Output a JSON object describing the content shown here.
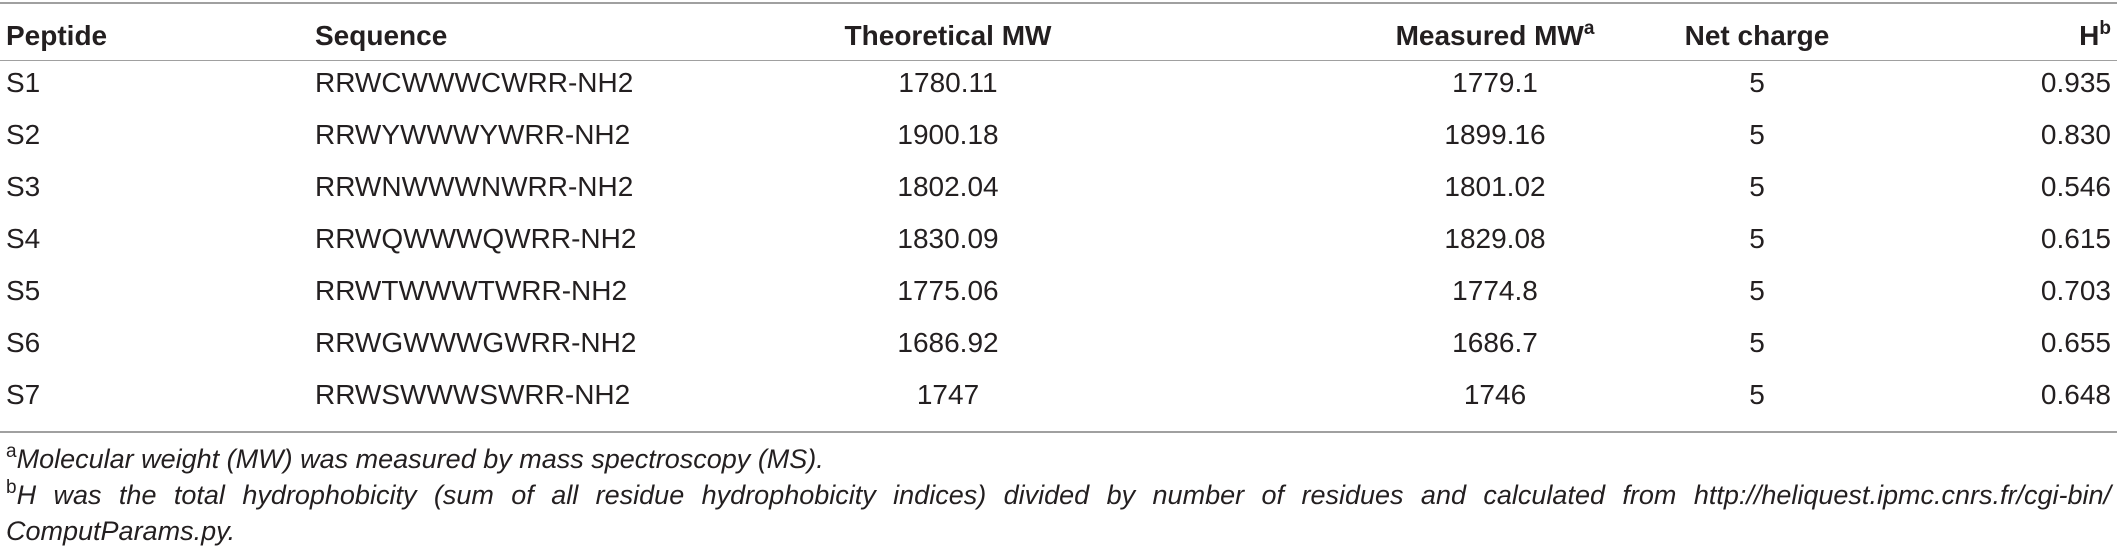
{
  "table": {
    "headers": {
      "peptide": "Peptide",
      "sequence": "Sequence",
      "theoretical_mw": "Theoretical MW",
      "measured_mw": "Measured MW",
      "measured_mw_sup": "a",
      "net_charge": "Net charge",
      "h": "H",
      "h_sup": "b"
    },
    "rows": [
      {
        "peptide": "S1",
        "sequence": "RRWCWWWCWRR-NH2",
        "theoretical_mw": "1780.11",
        "measured_mw": "1779.1",
        "net_charge": "5",
        "h": "0.935"
      },
      {
        "peptide": "S2",
        "sequence": "RRWYWWWYWRR-NH2",
        "theoretical_mw": "1900.18",
        "measured_mw": "1899.16",
        "net_charge": "5",
        "h": "0.830"
      },
      {
        "peptide": "S3",
        "sequence": "RRWNWWWNWRR-NH2",
        "theoretical_mw": "1802.04",
        "measured_mw": "1801.02",
        "net_charge": "5",
        "h": "0.546"
      },
      {
        "peptide": "S4",
        "sequence": "RRWQWWWQWRR-NH2",
        "theoretical_mw": "1830.09",
        "measured_mw": "1829.08",
        "net_charge": "5",
        "h": "0.615"
      },
      {
        "peptide": "S5",
        "sequence": "RRWTWWWTWRR-NH2",
        "theoretical_mw": "1775.06",
        "measured_mw": "1774.8",
        "net_charge": "5",
        "h": "0.703"
      },
      {
        "peptide": "S6",
        "sequence": "RRWGWWWGWRR-NH2",
        "theoretical_mw": "1686.92",
        "measured_mw": "1686.7",
        "net_charge": "5",
        "h": "0.655"
      },
      {
        "peptide": "S7",
        "sequence": "RRWSWWWSWRR-NH2",
        "theoretical_mw": "1747",
        "measured_mw": "1746",
        "net_charge": "5",
        "h": "0.648"
      }
    ]
  },
  "footnotes": {
    "a_mark": "a",
    "a_text": "Molecular weight (MW) was measured by mass spectroscopy (MS).",
    "b_mark": "b",
    "b_text_line1": "H was the total hydrophobicity (sum of all residue hydrophobicity indices) divided by number of residues and calculated from http://heliquest.ipmc.cnrs.fr/cgi-bin/",
    "b_text_line2": "ComputParams.py."
  }
}
